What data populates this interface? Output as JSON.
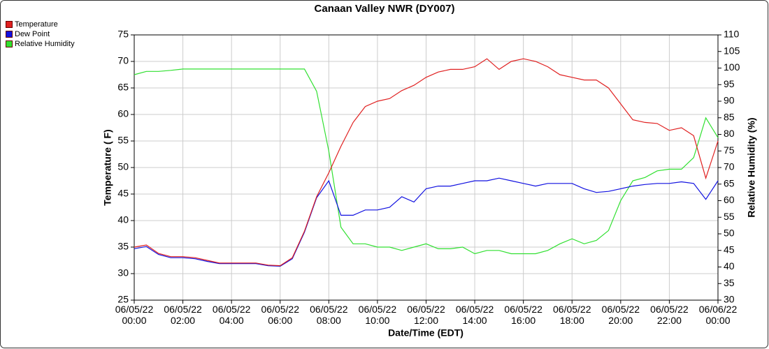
{
  "chart_data": {
    "type": "line",
    "title": "Canaan Valley NWR (DY007)",
    "x_label": "Date/Time (EDT)",
    "y_label": "Temperature ( F)",
    "y2_label": "Relative Humidity (%)",
    "grid": true,
    "legend": "top-left",
    "x": [
      "06/05/22 00:00",
      "06/05/22 00:30",
      "06/05/22 01:00",
      "06/05/22 01:30",
      "06/05/22 02:00",
      "06/05/22 02:30",
      "06/05/22 03:00",
      "06/05/22 03:30",
      "06/05/22 04:00",
      "06/05/22 04:30",
      "06/05/22 05:00",
      "06/05/22 05:30",
      "06/05/22 06:00",
      "06/05/22 06:30",
      "06/05/22 07:00",
      "06/05/22 07:30",
      "06/05/22 08:00",
      "06/05/22 08:30",
      "06/05/22 09:00",
      "06/05/22 09:30",
      "06/05/22 10:00",
      "06/05/22 10:30",
      "06/05/22 11:00",
      "06/05/22 11:30",
      "06/05/22 12:00",
      "06/05/22 12:30",
      "06/05/22 13:00",
      "06/05/22 13:30",
      "06/05/22 14:00",
      "06/05/22 14:30",
      "06/05/22 15:00",
      "06/05/22 15:30",
      "06/05/22 16:00",
      "06/05/22 16:30",
      "06/05/22 17:00",
      "06/05/22 17:30",
      "06/05/22 18:00",
      "06/05/22 18:30",
      "06/05/22 19:00",
      "06/05/22 19:30",
      "06/05/22 20:00",
      "06/05/22 20:30",
      "06/05/22 21:00",
      "06/05/22 21:30",
      "06/05/22 22:00",
      "06/05/22 22:30",
      "06/05/22 23:00",
      "06/05/22 23:30",
      "06/06/22 00:00"
    ],
    "xlim": [
      "06/05/22 00:00",
      "06/06/22 00:00"
    ],
    "xticks": [
      "06/05/22 00:00",
      "06/05/22 02:00",
      "06/05/22 04:00",
      "06/05/22 06:00",
      "06/05/22 08:00",
      "06/05/22 10:00",
      "06/05/22 12:00",
      "06/05/22 14:00",
      "06/05/22 16:00",
      "06/05/22 18:00",
      "06/05/22 20:00",
      "06/05/22 22:00",
      "06/06/22 00:00"
    ],
    "ylim": [
      25,
      75
    ],
    "yticks": [
      25,
      30,
      35,
      40,
      45,
      50,
      55,
      60,
      65,
      70,
      75
    ],
    "y2lim": [
      30,
      110
    ],
    "y2ticks": [
      30,
      35,
      40,
      45,
      50,
      55,
      60,
      65,
      70,
      75,
      80,
      85,
      90,
      95,
      100,
      105,
      110
    ],
    "series": [
      {
        "name": "Temperature",
        "color": "#e02020",
        "values": [
          35,
          35.4,
          33.8,
          33.2,
          33.2,
          33.0,
          32.5,
          32.0,
          32.0,
          32.0,
          32.0,
          31.6,
          31.5,
          33.0,
          38,
          44.5,
          49,
          54,
          58.5,
          61.5,
          62.5,
          63,
          64.5,
          65.5,
          67,
          68,
          68.5,
          68.5,
          69,
          70.5,
          68.5,
          70,
          70.5,
          70,
          69,
          67.5,
          67,
          66.5,
          66.5,
          65,
          62,
          59,
          58.5,
          58.3,
          57,
          57.5,
          56,
          48,
          55
        ]
      },
      {
        "name": "Dew Point",
        "color": "#1010e0",
        "values": [
          34.7,
          35.1,
          33.6,
          33.0,
          33.0,
          32.8,
          32.3,
          31.9,
          31.9,
          31.9,
          31.9,
          31.5,
          31.4,
          32.8,
          37.8,
          44.3,
          47.5,
          41,
          41,
          42,
          42,
          42.5,
          44.5,
          43.5,
          46,
          46.5,
          46.5,
          47,
          47.5,
          47.5,
          48,
          47.5,
          47,
          46.5,
          47,
          47,
          47,
          46,
          45.3,
          45.5,
          46,
          46.5,
          46.8,
          47,
          47,
          47.3,
          47,
          44,
          47.5
        ]
      },
      {
        "name": "Relative Humidity",
        "color": "#30e030",
        "axis": "y2",
        "values": [
          98,
          99,
          99,
          99.3,
          99.7,
          99.7,
          99.7,
          99.7,
          99.7,
          99.7,
          99.7,
          99.7,
          99.7,
          99.7,
          99.7,
          93,
          75,
          52,
          47,
          47,
          46,
          46,
          45,
          46,
          47,
          45.5,
          45.5,
          46,
          44,
          45,
          45,
          44,
          44,
          44,
          45,
          47,
          48.5,
          47,
          48,
          51,
          60,
          66,
          67,
          69,
          69.5,
          69.5,
          73,
          85,
          79
        ]
      }
    ]
  }
}
